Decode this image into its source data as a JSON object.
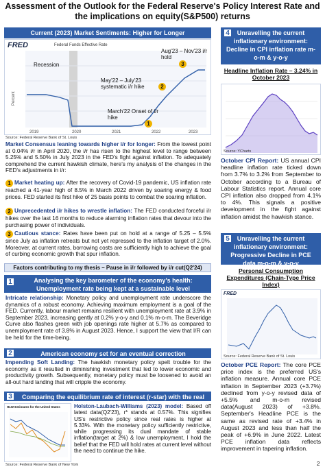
{
  "title": "Assessment of the Outlook for the Federal Reserve's Policy Interest Rate and the implications on equity(S&P500) returns",
  "current_banner": "Current (2023) Market Sentiments: Higher for Longer",
  "fred_chart": {
    "logo": "FRED",
    "legend": "Federal Funds Effective Rate",
    "ylabel": "Percent",
    "xticks": [
      "2019",
      "2020",
      "2021",
      "2022",
      "2023"
    ],
    "annotations": {
      "recession": "Recession",
      "hike": "May'22 – July'23 systematic i/r hike",
      "hold": "Aug'23 – Nov'23 i/r hold",
      "onset": "March'22 Onset of i/r hike"
    },
    "markers": {
      "m1": "1",
      "m2": "2",
      "m3": "3"
    },
    "source": "Source: Federal Reserve Bank of St. Louis"
  },
  "consensus": {
    "lead": "Market Consensus leaning towards higher i/r for longer:",
    "body": " From the lowest point at 0.04% i/r in April 2020, the i/r has risen to the highest level to range between 5.25% and 5.50% in July 2023 in the FED's fight against inflation. To adequately comprehend the current hawkish climate, here's my analysis of the changes in the FED's adjustments in i/r:"
  },
  "points": [
    {
      "num": "1",
      "lead": "Market heating up:",
      "body": " After the recovery of Covid-19 pandemic, US inflation rate reached a 41-year high of 8.5% in March 2022 driven by soaring energy & food prices. FED started its first hike of 25 basis points to combat the soaring inflation."
    },
    {
      "num": "2",
      "lead": "Unprecedented i/r hikes to wrestle inflation:",
      "body": " The FED conducted forceful i/r hikes over the last 16 months to reduce alarming inflation rates that devour into the purchasing power of individuals."
    },
    {
      "num": "3",
      "lead": "Cautious stance:",
      "body": " Rates have been put on hold at a range of 5.25 – 5.5% since July as inflation retreats but not yet repressed to the inflation target of 2.0%. Moreover, at current rates, borrowing costs are sufficiently high to achieve the goal of curbing economic growth that spur inflation."
    }
  ],
  "factors_bar": "Factors contributing to my thesis – Pause in i/r followed by i/r cut(Q2'24)",
  "section1": {
    "num": "1",
    "banner": "Analysing the key barometer of the economy's health: Unemployment rate being kept at a sustainable level",
    "lead": "Intricate relationship:",
    "body": " Monetary policy and unemployment rate underscore the dynamics of a robust economy. Achieving maximum employment is a goal of the FED. Currently, labour market remains resilient with unemployment rate at 3.9% in September 2023, increasing gently at 0.2% y-o-y and 0.1% m-o-m. The Beveridge Curve also flashes green with job openings rate higher at 5.7% as compared to unemployment rate of 3.8% in August 2023. Hence, I support the view that I/R can be held for the time-being."
  },
  "section2": {
    "num": "2",
    "banner": "American economy set for an eventual correction",
    "lead": "Impending Soft Landing:",
    "body": " The hawkish monetary policy spelt trouble for the economy as it resulted in diminishing investment that led to lower economic and productivity growth. Subsequently, monetary policy must be loosened to avoid an all-out hard landing that will cripple the economy."
  },
  "section3": {
    "num": "3",
    "banner": "Comparing the equilibrium rate of interest (r-star) with the real rate",
    "chart_title": "HLW Estimates for the United States",
    "lead": "Holston-Laubach-Williams (2023) model:",
    "body": " Based off latest data(Q2'23), r* stands at 0.57%. This signifies US's restrictive policy since real rates is higher at 5.33%. With the monetary policy sufficiently restrictive, while progressing its dual mandate of stable inflation(target at 2%) & low unemployment, I hold the belief that the FED will hold rates at current level without the need to continue the hike.",
    "source": "Source: Federal Reserve Bank of New York"
  },
  "section4": {
    "num": "4",
    "banner": "Unravelling the current inflationary environment: Decline in CPI inflation rate m-o-m & y-o-y",
    "chart_title": "Headline Inflation Rate – 3.24% in October 2023",
    "chart_source": "Source: YCharts",
    "lead": "October CPI Report:",
    "body": " US annual CPI headline inflation rate ticked down from 3.7% to 3.2% from September to October according to a Bureau of Labour Statistics report. Annual core CPI inflation also dropped from 4.1% to 4%. This signals a positive development in the fight against inflation amidst the hawkish stance."
  },
  "section5": {
    "num": "5",
    "banner": "Unravelling the current inflationary environment: Progressive Decline in PCE data m-o-m & y-o-y",
    "chart_title": "Personal Consumption Expenditures (Chain-Type Price Index)",
    "chart_logo": "FRED",
    "chart_source": "Source: Federal Reserve Bank of St. Louis",
    "lead": "October PCE Report:",
    "body": " The core PCE price index is the preferred US's inflation measure. Annual core PCE inflation in September 2023 (+3.7%) declined from y-o-y revised data of +5.5% and m-o-m revised data(August 2023) of +3.8%. September's Headline PCE is the same as revised rate of +3.4% in August 2023 and less than half the peak of +6.9% in June 2022. Latest PCE inflation data reflects improvement in tapering inflation."
  },
  "page_number": "2"
}
